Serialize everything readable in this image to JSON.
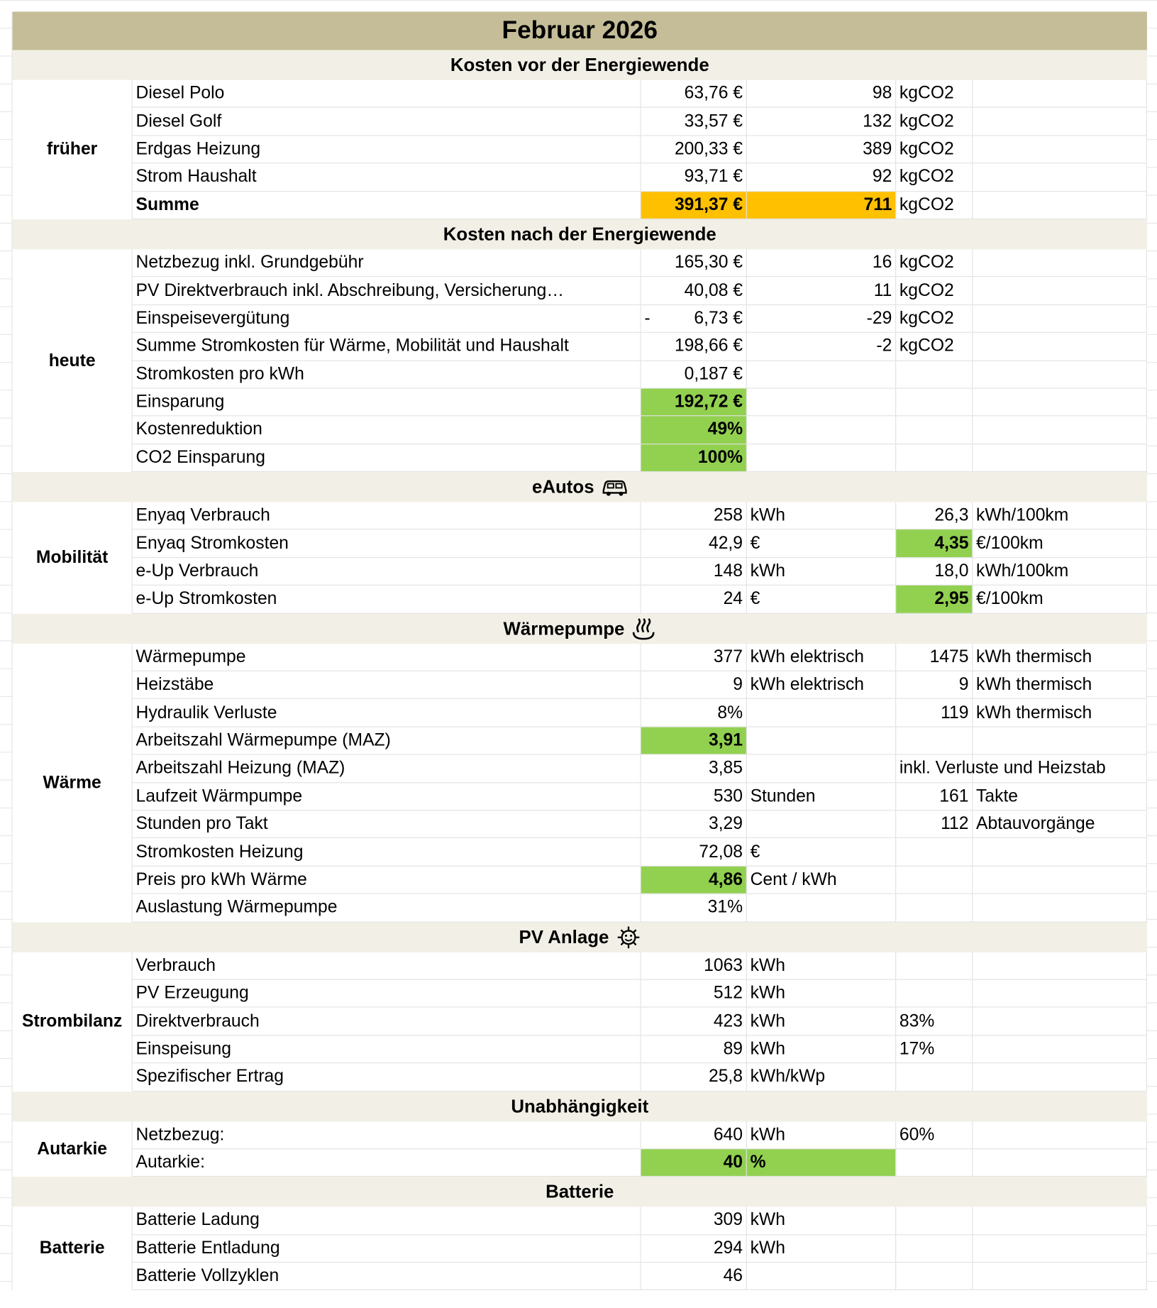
{
  "title": "Februar 2026",
  "sections": [
    {
      "header": "Kosten vor der Energiewende",
      "label": "früher",
      "rows": [
        {
          "cells": [
            "Diesel Polo",
            "63,76 €",
            "98",
            "kgCO2",
            null
          ]
        },
        {
          "cells": [
            "Diesel Golf",
            "33,57 €",
            "132",
            "kgCO2",
            null
          ]
        },
        {
          "cells": [
            "Erdgas Heizung",
            "200,33 €",
            "389",
            "kgCO2",
            null
          ]
        },
        {
          "cells": [
            "Strom Haushalt",
            "93,71 €",
            "92",
            "kgCO2",
            null
          ]
        },
        {
          "bold": true,
          "cells": [
            "Summe",
            {
              "text": "391,37 €",
              "fill": "#ffc000"
            },
            {
              "text": "711",
              "fill": "#ffc000"
            },
            "kgCO2",
            null
          ]
        }
      ]
    },
    {
      "header": "Kosten nach der Energiewende",
      "label": "heute",
      "rows": [
        {
          "cells": [
            "Netzbezug inkl. Grundgebühr",
            "165,30 €",
            "16",
            "kgCO2",
            null
          ]
        },
        {
          "cells": [
            "PV Direktverbrauch inkl. Abschreibung, Versicherung…",
            "40,08 €",
            "11",
            "kgCO2",
            null
          ]
        },
        {
          "cells": [
            "Einspeisevergütung",
            {
              "sign": "-",
              "text": "6,73 €"
            },
            "-29",
            "kgCO2",
            null
          ]
        },
        {
          "cells": [
            "Summe Stromkosten für Wärme, Mobilität und Haushalt",
            "198,66 €",
            "-2",
            "kgCO2",
            null
          ]
        },
        {
          "cells": [
            "Stromkosten pro kWh",
            "0,187 €",
            null,
            null,
            null
          ]
        },
        {
          "cells": [
            "Einsparung",
            {
              "text": "192,72 €",
              "fill": "#92d050"
            },
            null,
            null,
            null
          ]
        },
        {
          "cells": [
            "Kostenreduktion",
            {
              "text": "49%",
              "fill": "#92d050"
            },
            null,
            null,
            null
          ]
        },
        {
          "cells": [
            "CO2 Einsparung",
            {
              "text": "100%",
              "fill": "#92d050"
            },
            null,
            null,
            null
          ]
        }
      ]
    },
    {
      "header": "eAutos",
      "label": "Mobilität",
      "rows": [
        {
          "cells": [
            "Enyaq Verbrauch",
            "258",
            "kWh",
            "26,3",
            "kWh/100km"
          ]
        },
        {
          "cells": [
            "Enyaq Stromkosten",
            "42,9",
            "€",
            {
              "text": "4,35",
              "fill": "#92d050"
            },
            "€/100km"
          ]
        },
        {
          "cells": [
            "e-Up Verbrauch",
            "148",
            "kWh",
            "18,0",
            "kWh/100km"
          ]
        },
        {
          "cells": [
            "e-Up Stromkosten",
            "24",
            "€",
            {
              "text": "2,95",
              "fill": "#92d050"
            },
            "€/100km"
          ]
        }
      ]
    },
    {
      "header": "Wärmepumpe",
      "label": "Wärme",
      "rows": [
        {
          "cells": [
            "Wärmepumpe",
            "377",
            "kWh elektrisch",
            "1475",
            "kWh thermisch"
          ]
        },
        {
          "cells": [
            "Heizstäbe",
            "9",
            "kWh elektrisch",
            "9",
            "kWh thermisch"
          ]
        },
        {
          "cells": [
            "Hydraulik Verluste",
            "8%",
            null,
            "119",
            "kWh thermisch"
          ]
        },
        {
          "cells": [
            "Arbeitszahl Wärmepumpe (MAZ)",
            {
              "text": "3,91",
              "fill": "#92d050"
            },
            null,
            null,
            null
          ]
        },
        {
          "cells": [
            "Arbeitszahl Heizung (MAZ)",
            "3,85",
            null,
            "inkl. Verluste und Heizstab",
            null
          ]
        },
        {
          "cells": [
            "Laufzeit Wärmpumpe",
            "530",
            "Stunden",
            "161",
            "Takte"
          ]
        },
        {
          "cells": [
            "Stunden pro Takt",
            "3,29",
            null,
            "112",
            "Abtauvorgänge"
          ]
        },
        {
          "cells": [
            "Stromkosten Heizung",
            "72,08",
            "€",
            null,
            null
          ]
        },
        {
          "cells": [
            "Preis pro kWh Wärme",
            {
              "text": "4,86",
              "fill": "#92d050"
            },
            "Cent / kWh",
            null,
            null
          ]
        },
        {
          "cells": [
            "Auslastung Wärmepumpe",
            "31%",
            null,
            null,
            null
          ]
        }
      ]
    },
    {
      "header": "PV Anlage",
      "label": "Strombilanz",
      "rows": [
        {
          "cells": [
            "Verbrauch",
            "1063",
            "kWh",
            null,
            null
          ]
        },
        {
          "cells": [
            "PV Erzeugung",
            "512",
            "kWh",
            null,
            null
          ]
        },
        {
          "cells": [
            "Direktverbrauch",
            "423",
            "kWh",
            "83%",
            null
          ]
        },
        {
          "cells": [
            "Einspeisung",
            "89",
            "kWh",
            "17%",
            null
          ]
        },
        {
          "cells": [
            "Spezifischer Ertrag",
            "25,8",
            "kWh/kWp",
            null,
            null
          ]
        }
      ]
    },
    {
      "header": "Unabhängigkeit",
      "label": "Autarkie",
      "rows": [
        {
          "cells": [
            "Netzbezug:",
            "640",
            "kWh",
            "60%",
            null
          ]
        },
        {
          "cells": [
            "Autarkie:",
            {
              "text": "40",
              "fill": "#92d050"
            },
            {
              "text": "%",
              "fill": "#92d050"
            },
            null,
            null
          ]
        }
      ]
    },
    {
      "header": "Batterie",
      "label": "Batterie",
      "rows": [
        {
          "cells": [
            "Batterie Ladung",
            "309",
            "kWh",
            null,
            null
          ]
        },
        {
          "cells": [
            "Batterie Entladung",
            "294",
            "kWh",
            null,
            null
          ]
        },
        {
          "cells": [
            "Batterie Vollzyklen",
            "46",
            null,
            null,
            null
          ]
        }
      ]
    }
  ]
}
